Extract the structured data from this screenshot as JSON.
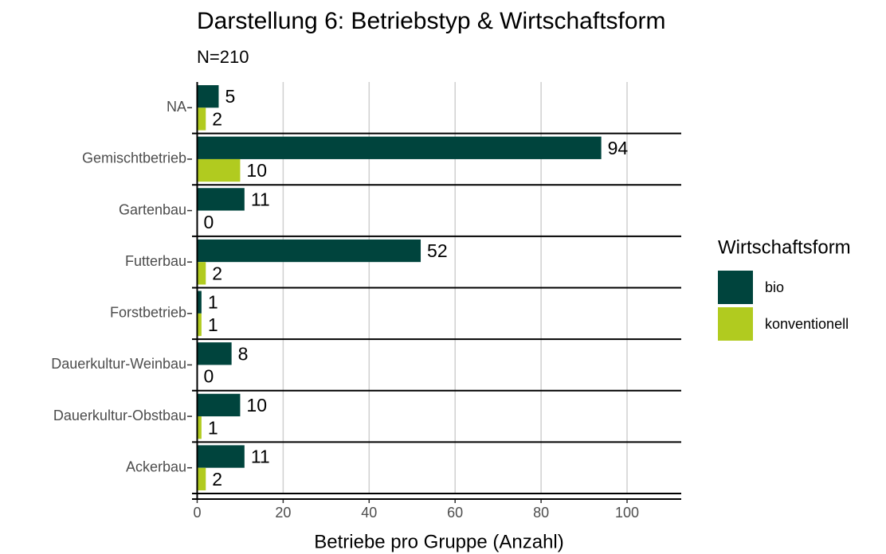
{
  "chart_data": {
    "type": "bar",
    "orientation": "horizontal",
    "title": "Darstellung 6: Betriebstyp & Wirtschaftsform",
    "subtitle": "N=210",
    "x_label": "Betriebe pro Gruppe (Anzahl)",
    "legend_title": "Wirtschaftsform",
    "categories": [
      "NA",
      "Gemischtbetrieb",
      "Gartenbau",
      "Futterbau",
      "Forstbetrieb",
      "Dauerkultur-Weinbau",
      "Dauerkultur-Obstbau",
      "Ackerbau"
    ],
    "series": [
      {
        "name": "bio",
        "color": "#00443d",
        "values": [
          5,
          94,
          11,
          52,
          1,
          8,
          10,
          11
        ]
      },
      {
        "name": "konventionell",
        "color": "#b1cb1f",
        "values": [
          2,
          10,
          0,
          2,
          1,
          0,
          1,
          2
        ]
      }
    ],
    "xlim": [
      -1.2,
      112.6
    ],
    "xticks": [
      0,
      20,
      40,
      60,
      80,
      100
    ],
    "grid": true
  }
}
